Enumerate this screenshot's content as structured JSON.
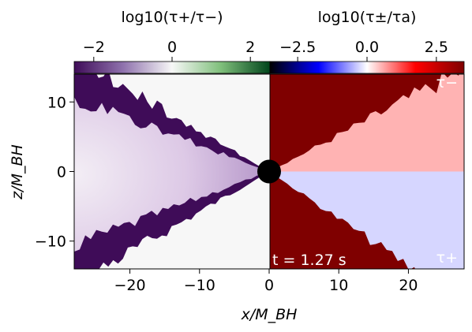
{
  "chart_data": {
    "type": "heatmap",
    "title": "",
    "xlabel": "x/M_BH",
    "ylabel": "z/M_BH",
    "xlim": [
      -28,
      28
    ],
    "ylim": [
      -14,
      14
    ],
    "x_ticks": [
      -20,
      -10,
      0,
      10,
      20
    ],
    "y_ticks": [
      10,
      0,
      -10
    ],
    "annotations": {
      "time": "t = 1.27 s",
      "upper_right": "τ−",
      "lower_right": "τ+"
    },
    "black_hole": {
      "x": 0,
      "z": 0,
      "radius": 1.7
    },
    "colorbars": [
      {
        "name": "left",
        "label": "log10(τ+/τ−)",
        "range": [
          -2.5,
          2.5
        ],
        "ticks": [
          -2,
          0,
          2
        ],
        "tick_labels": [
          "−2",
          "0",
          "2"
        ],
        "colors": [
          "#3f0c58",
          "#8f72ad",
          "#f7f7f7",
          "#7fbf7b",
          "#00441b"
        ],
        "cmap": "PRGn"
      },
      {
        "name": "right",
        "label": "log10(τ±/τa)",
        "range": [
          -3.5,
          3.5
        ],
        "ticks": [
          -2.5,
          0.0,
          2.5
        ],
        "tick_labels": [
          "−2.5",
          "0.0",
          "2.5"
        ],
        "colors": [
          "#000000",
          "#0000ff",
          "#ffffff",
          "#ff0000",
          "#7f0000"
        ],
        "cmap": "seismic"
      }
    ],
    "panels": [
      {
        "name": "left-panel",
        "x_range": [
          -28,
          0
        ],
        "background": "#f7f7f7",
        "wedge_fill": "#3f0c58",
        "core_fill": "#e9dcef"
      },
      {
        "name": "right-panel",
        "x_range": [
          0,
          28
        ],
        "background": "#7f0000",
        "upper_wedge_fill": "#ffb3b3",
        "lower_wedge_fill": "#d6d6ff"
      }
    ]
  }
}
